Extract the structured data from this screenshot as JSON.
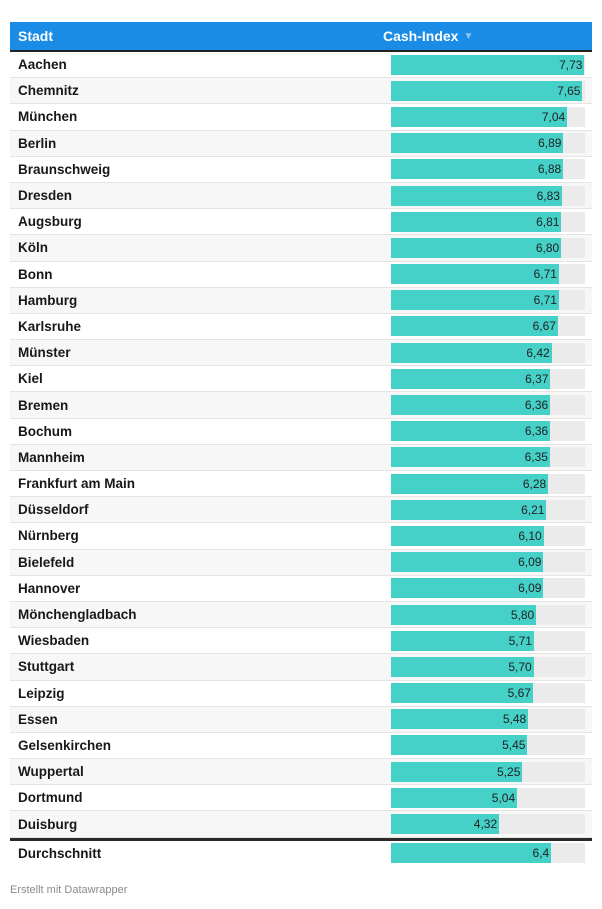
{
  "header": {
    "col_city": "Stadt",
    "col_index": "Cash-Index",
    "sort_icon": "triangle-down"
  },
  "scale_max": 7.75,
  "colors": {
    "header": "#1a8ce6",
    "bar": "#45d0c8",
    "track": "#ebebeb"
  },
  "rows": [
    {
      "city": "Aachen",
      "value": 7.73,
      "label": "7,73"
    },
    {
      "city": "Chemnitz",
      "value": 7.65,
      "label": "7,65"
    },
    {
      "city": "München",
      "value": 7.04,
      "label": "7,04"
    },
    {
      "city": "Berlin",
      "value": 6.89,
      "label": "6,89"
    },
    {
      "city": "Braunschweig",
      "value": 6.88,
      "label": "6,88"
    },
    {
      "city": "Dresden",
      "value": 6.83,
      "label": "6,83"
    },
    {
      "city": "Augsburg",
      "value": 6.81,
      "label": "6,81"
    },
    {
      "city": "Köln",
      "value": 6.8,
      "label": "6,80"
    },
    {
      "city": "Bonn",
      "value": 6.71,
      "label": "6,71"
    },
    {
      "city": "Hamburg",
      "value": 6.71,
      "label": "6,71"
    },
    {
      "city": "Karlsruhe",
      "value": 6.67,
      "label": "6,67"
    },
    {
      "city": "Münster",
      "value": 6.42,
      "label": "6,42"
    },
    {
      "city": "Kiel",
      "value": 6.37,
      "label": "6,37"
    },
    {
      "city": "Bremen",
      "value": 6.36,
      "label": "6,36"
    },
    {
      "city": "Bochum",
      "value": 6.36,
      "label": "6,36"
    },
    {
      "city": "Mannheim",
      "value": 6.35,
      "label": "6,35"
    },
    {
      "city": "Frankfurt am Main",
      "value": 6.28,
      "label": "6,28"
    },
    {
      "city": "Düsseldorf",
      "value": 6.21,
      "label": "6,21"
    },
    {
      "city": "Nürnberg",
      "value": 6.1,
      "label": "6,10"
    },
    {
      "city": "Bielefeld",
      "value": 6.09,
      "label": "6,09"
    },
    {
      "city": "Hannover",
      "value": 6.09,
      "label": "6,09"
    },
    {
      "city": "Mönchengladbach",
      "value": 5.8,
      "label": "5,80"
    },
    {
      "city": "Wiesbaden",
      "value": 5.71,
      "label": "5,71"
    },
    {
      "city": "Stuttgart",
      "value": 5.7,
      "label": "5,70"
    },
    {
      "city": "Leipzig",
      "value": 5.67,
      "label": "5,67"
    },
    {
      "city": "Essen",
      "value": 5.48,
      "label": "5,48"
    },
    {
      "city": "Gelsenkirchen",
      "value": 5.45,
      "label": "5,45"
    },
    {
      "city": "Wuppertal",
      "value": 5.25,
      "label": "5,25"
    },
    {
      "city": "Dortmund",
      "value": 5.04,
      "label": "5,04"
    },
    {
      "city": "Duisburg",
      "value": 4.32,
      "label": "4,32"
    }
  ],
  "average": {
    "city": "Durchschnitt",
    "value": 6.4,
    "label": "6,4"
  },
  "footer": "Erstellt mit Datawrapper"
}
